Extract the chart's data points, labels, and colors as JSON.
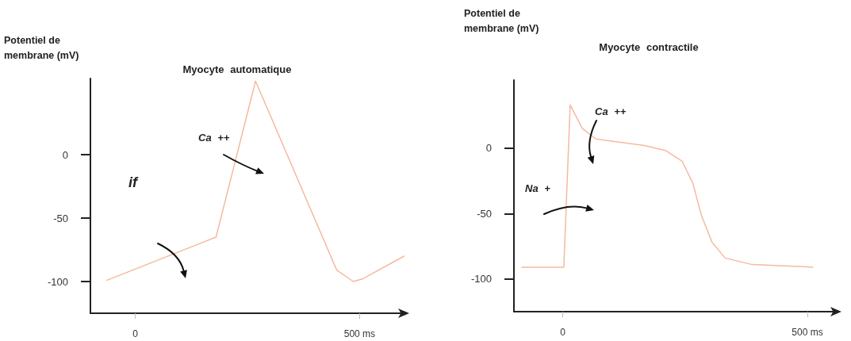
{
  "chart_data": [
    {
      "type": "line",
      "title": "Myocyte automatique",
      "ylabel": "Potentiel de membrane (mV)",
      "annotations": [
        "Ca ++",
        "if"
      ],
      "x": [
        -63,
        180,
        268,
        449,
        486,
        506,
        599
      ],
      "series": [
        {
          "color": "#f5b9a0",
          "values": [
            -99,
            -65,
            58,
            -91,
            -100,
            -98,
            -80
          ]
        }
      ],
      "xlim": [
        -100,
        600
      ],
      "ylim": [
        -125,
        60
      ],
      "xticks": [
        0,
        {
          "value": 500,
          "label": "500 ms"
        }
      ],
      "yticks": [
        -100,
        -50,
        0
      ],
      "grid": false,
      "marker": "none",
      "line_style": "solid"
    },
    {
      "type": "line",
      "title": "Myocyte contractile",
      "ylabel": "Potentiel de membrane (mV)",
      "annotations": [
        "Ca ++",
        "Na +"
      ],
      "x": [
        -84,
        2,
        15,
        40,
        68,
        167,
        211,
        244,
        266,
        283,
        305,
        332,
        387,
        511
      ],
      "series": [
        {
          "color": "#f5b9a0",
          "values": [
            -91,
            -91,
            33,
            15,
            7,
            2,
            -2,
            -10,
            -27,
            -51,
            -72,
            -84,
            -89,
            -91
          ]
        }
      ],
      "xlim": [
        -100,
        560
      ],
      "ylim": [
        -125,
        52
      ],
      "xticks": [
        0,
        {
          "value": 500,
          "label": "500 ms"
        }
      ],
      "yticks": [
        -100,
        -50,
        0
      ],
      "grid": false,
      "marker": "none",
      "line_style": "solid"
    }
  ]
}
